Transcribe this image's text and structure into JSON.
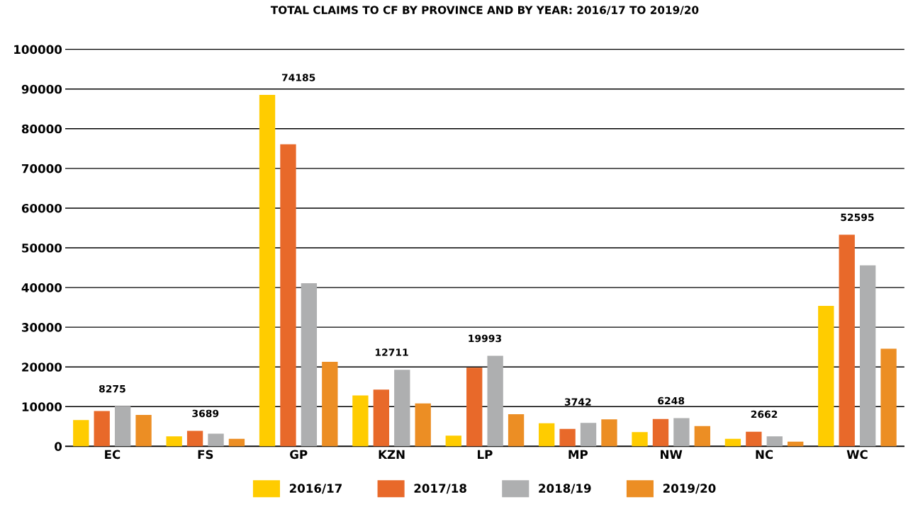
{
  "chart_data": {
    "type": "bar",
    "title": "TOTAL CLAIMS TO CF BY PROVINCE AND BY YEAR: 2016/17 TO 2019/20",
    "categories": [
      "EC",
      "FS",
      "GP",
      "KZN",
      "LP",
      "MP",
      "NW",
      "NC",
      "WC"
    ],
    "series": [
      {
        "name": "2016/17",
        "color": "#ffcc00",
        "values": [
          6600,
          2500,
          88500,
          12800,
          2700,
          5800,
          3600,
          1900,
          35400
        ]
      },
      {
        "name": "2017/18",
        "color": "#e8692a",
        "values": [
          8900,
          3900,
          76100,
          14300,
          19800,
          4400,
          6900,
          3700,
          53300
        ]
      },
      {
        "name": "2018/19",
        "color": "#aeafb0",
        "values": [
          10100,
          3200,
          41100,
          19300,
          22800,
          5900,
          7100,
          2500,
          45600
        ]
      },
      {
        "name": "2019/20",
        "color": "#ec8e24",
        "values": [
          7900,
          1900,
          21300,
          10800,
          8100,
          6800,
          5100,
          1200,
          24600
        ]
      }
    ],
    "ylim": [
      0,
      100000
    ],
    "yticks": [
      0,
      10000,
      20000,
      30000,
      40000,
      50000,
      60000,
      70000,
      80000,
      90000,
      100000
    ],
    "grid": "y",
    "legend": "bottom",
    "annotations": [
      "8275",
      "3689",
      "74185",
      "12711",
      "19993",
      "3742",
      "6248",
      "2662",
      "52595"
    ]
  }
}
